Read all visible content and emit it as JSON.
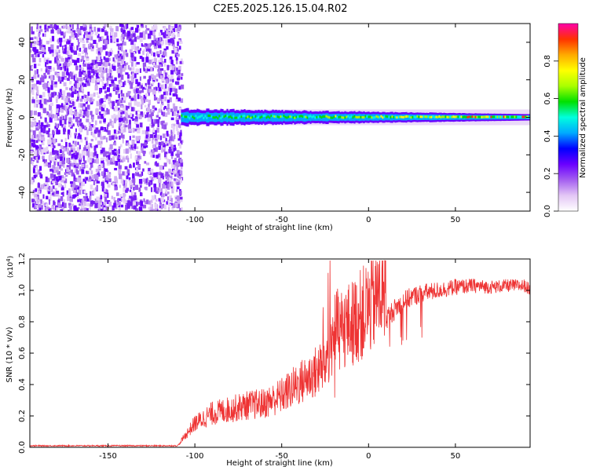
{
  "title": "C2E5.2025.126.15.04.R02",
  "chart_data": [
    {
      "type": "heatmap",
      "xlabel": "Height of straight line (km)",
      "ylabel": "Frequency (Hz)",
      "xlim": [
        -195,
        93
      ],
      "ylim": [
        -50,
        50
      ],
      "x_ticks": [
        -150,
        -100,
        -50,
        0,
        50
      ],
      "y_ticks": [
        -40,
        -20,
        0,
        20,
        40
      ],
      "colorbar": {
        "label": "Normalized spectral amplitude",
        "range": [
          0,
          1
        ],
        "ticks": [
          "0.0",
          "0.2",
          "0.4",
          "0.6",
          "0.8"
        ],
        "colors": [
          "#ffffff",
          "#e3c6f5",
          "#a45ef0",
          "#6a00ff",
          "#0000ff",
          "#00aaff",
          "#00ffdd",
          "#00e000",
          "#aaff00",
          "#ffff00",
          "#ffaa00",
          "#ff3300",
          "#ff00aa"
        ]
      },
      "regions": [
        {
          "x": [
            -195,
            -108
          ],
          "freq": [
            -50,
            50
          ],
          "description": "broadband noise"
        },
        {
          "x": [
            -108,
            93
          ],
          "freq": [
            -3,
            3
          ],
          "description": "signal band near 0 Hz"
        }
      ]
    },
    {
      "type": "line",
      "xlabel": "Height of straight line (km)",
      "ylabel": "SNR (10 * v/v)",
      "multiplier": "(x10",
      "multiplier_exp": "4",
      "xlim": [
        -195,
        93
      ],
      "ylim": [
        0,
        1.2
      ],
      "x_ticks": [
        -150,
        -100,
        -50,
        0,
        50
      ],
      "y_ticks": [
        "0.0",
        "0.2",
        "0.4",
        "0.6",
        "0.8",
        "1.0",
        "1.2"
      ],
      "color": "#ee3333",
      "series": [
        {
          "x": [
            -195,
            -150,
            -110,
            -100,
            -90,
            -80,
            -70,
            -60,
            -50,
            -40,
            -30,
            -25,
            -22,
            -20,
            -15,
            -10,
            -5,
            0,
            5,
            10,
            15,
            20,
            25,
            30,
            40,
            50,
            60,
            70,
            80,
            90,
            93
          ],
          "values": [
            0.01,
            0.01,
            0.01,
            0.12,
            0.17,
            0.19,
            0.21,
            0.22,
            0.26,
            0.32,
            0.38,
            0.42,
            0.5,
            0.58,
            0.6,
            0.62,
            0.66,
            0.7,
            0.76,
            0.82,
            0.88,
            0.93,
            0.96,
            0.98,
            1.0,
            1.02,
            1.03,
            1.02,
            1.03,
            1.03,
            1.0
          ]
        }
      ]
    }
  ]
}
